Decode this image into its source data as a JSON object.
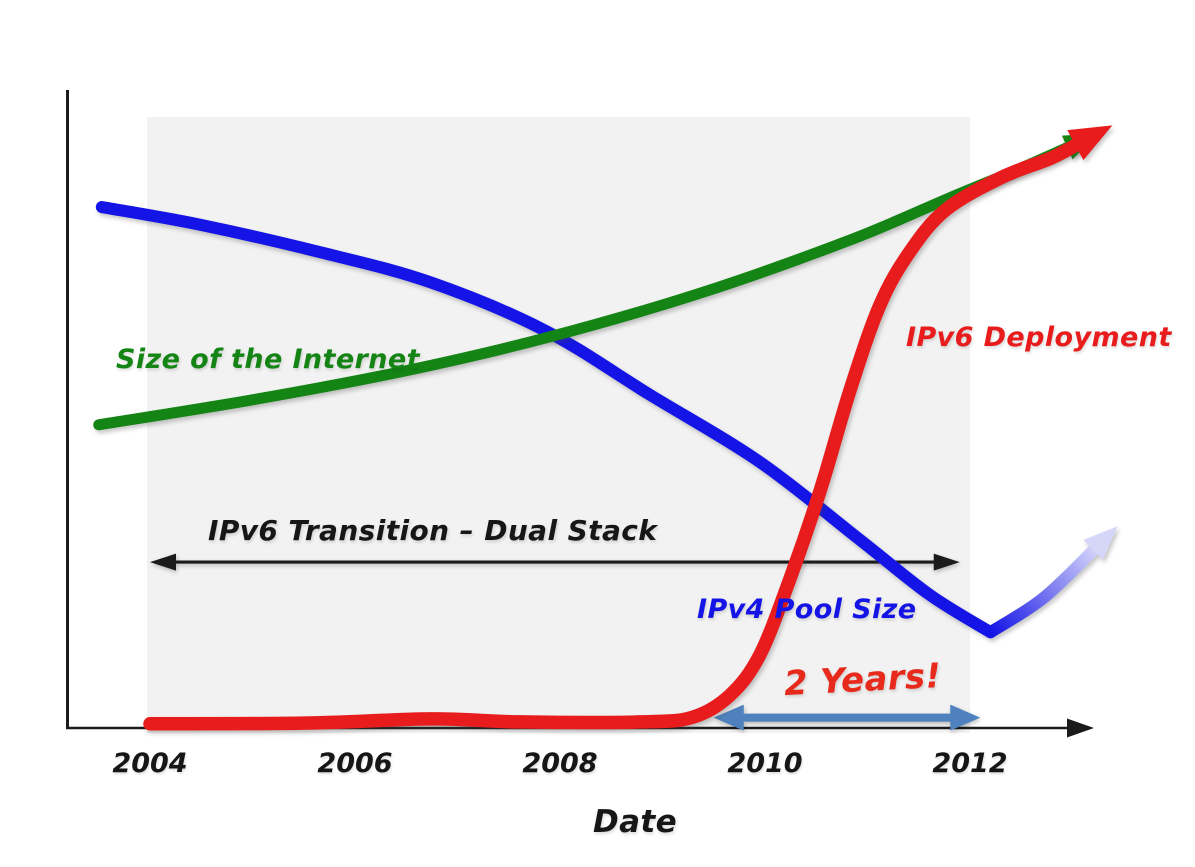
{
  "chart_data": {
    "type": "line",
    "style": "hand-drawn sketch",
    "title": "",
    "xlabel": "Date",
    "ylabel": "",
    "x_ticks": [
      2004,
      2006,
      2008,
      2010,
      2012
    ],
    "x_range": [
      2003.2,
      2013.4
    ],
    "y_range_relative": [
      0,
      105
    ],
    "y_unit": "relative (no scale shown)",
    "grid": false,
    "legend_position": "inline-curve-labels",
    "plot_band_color": "#f2f2f2",
    "axis_color": "#1b1b1b",
    "series": [
      {
        "name": "Size of the Internet",
        "color": "#148514",
        "shape": "steadily rising, slightly convex, ends in arrowhead",
        "arrow_end": true,
        "points": [
          [
            2003.5,
            49.7
          ],
          [
            2005.0,
            53.8
          ],
          [
            2006.45,
            58.4
          ],
          [
            2007.85,
            63.9
          ],
          [
            2009.37,
            71.3
          ],
          [
            2010.83,
            80.0
          ],
          [
            2011.8,
            86.9
          ],
          [
            2012.5,
            91.8
          ],
          [
            2013.1,
            96.3
          ]
        ]
      },
      {
        "name": "IPv4 Pool Size",
        "color": "#1414e6",
        "shape": "declining, steepens, minimum near 2012.2 then fading upturn arrow",
        "fade_tail_from": 9,
        "points": [
          [
            2003.53,
            85.4
          ],
          [
            2004.49,
            82.5
          ],
          [
            2005.66,
            78.0
          ],
          [
            2006.73,
            73.1
          ],
          [
            2007.85,
            65.2
          ],
          [
            2008.88,
            54.6
          ],
          [
            2009.95,
            43.6
          ],
          [
            2010.93,
            30.8
          ],
          [
            2011.61,
            21.8
          ],
          [
            2012.2,
            15.7
          ],
          [
            2012.73,
            21.5
          ],
          [
            2013.3,
            30.8
          ]
        ]
      },
      {
        "name": "IPv6 Deployment",
        "color": "#e81c1c",
        "shape": "flat near zero until ~2009.3, then steep S-curve rise, ends in arrowhead",
        "arrow_end": true,
        "points": [
          [
            2004.0,
            0.7
          ],
          [
            2005.5,
            0.8
          ],
          [
            2006.75,
            1.5
          ],
          [
            2007.6,
            1.0
          ],
          [
            2008.8,
            1.0
          ],
          [
            2009.3,
            1.8
          ],
          [
            2009.66,
            5.4
          ],
          [
            2009.95,
            12.0
          ],
          [
            2010.24,
            24.3
          ],
          [
            2010.54,
            39.0
          ],
          [
            2010.83,
            55.4
          ],
          [
            2011.12,
            69.3
          ],
          [
            2011.41,
            78.0
          ],
          [
            2011.76,
            84.9
          ],
          [
            2012.3,
            90.2
          ],
          [
            2012.8,
            93.5
          ],
          [
            2013.1,
            96.2
          ]
        ]
      }
    ],
    "annotations": [
      {
        "type": "double_arrow",
        "label": "IPv6 Transition – Dual Stack",
        "x1": 2004.0,
        "x2": 2011.9,
        "y": 27.2,
        "color": "#1b1b1b"
      },
      {
        "type": "double_arrow",
        "label": "2 Years!",
        "x1": 2009.5,
        "x2": 2012.1,
        "y": 1.7,
        "color": "#4e81bd",
        "label_color": "#e82a1c"
      }
    ]
  }
}
